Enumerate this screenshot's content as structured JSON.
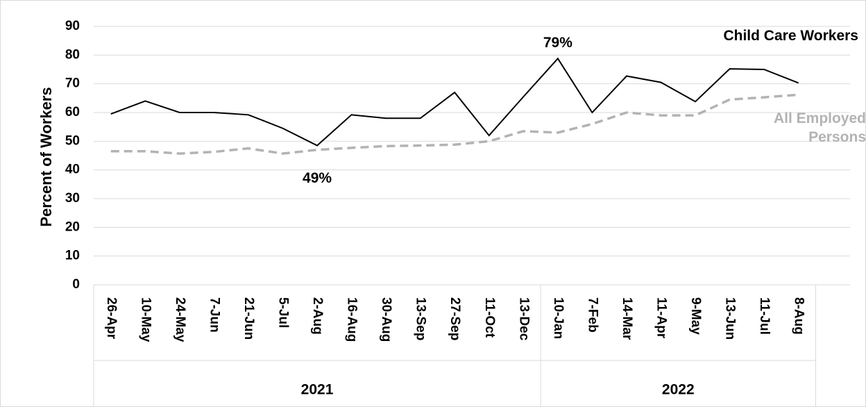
{
  "chart_data": {
    "type": "line",
    "y_label": "Percent of Workers",
    "categories": [
      "26-Apr",
      "10-May",
      "24-May",
      "7-Jun",
      "21-Jun",
      "5-Jul",
      "2-Aug",
      "16-Aug",
      "30-Aug",
      "13-Sep",
      "27-Sep",
      "11-Oct",
      "13-Dec",
      "10-Jan",
      "7-Feb",
      "14-Mar",
      "11-Apr",
      "9-May",
      "13-Jun",
      "11-Jul",
      "8-Aug",
      null
    ],
    "groups": [
      {
        "label": "2021",
        "span": 13
      },
      {
        "label": "2022",
        "span": 8
      }
    ],
    "series": [
      {
        "name": "Child Care Workers",
        "color": "#000000",
        "dash": false,
        "values": [
          59.5,
          64,
          60,
          60,
          59.2,
          54.5,
          48.5,
          59.2,
          58,
          58,
          67,
          52,
          65.5,
          78.8,
          60,
          72.7,
          70.5,
          63.8,
          75.2,
          75,
          70.3,
          null
        ]
      },
      {
        "name": "All Employed Persons",
        "color": "#b3b3b3",
        "dash": true,
        "values": [
          46.5,
          46.5,
          45.7,
          46.3,
          47.5,
          45.7,
          47,
          47.7,
          48.3,
          48.5,
          48.8,
          50,
          53.5,
          53,
          56,
          60,
          59,
          59,
          64.5,
          65.3,
          66.2,
          null
        ]
      }
    ],
    "annotations": [
      {
        "text": "79%",
        "index": 13
      },
      {
        "text": "49%",
        "index": 6
      }
    ],
    "ylim": [
      0,
      90
    ],
    "yticks": [
      0,
      10,
      20,
      30,
      40,
      50,
      60,
      70,
      80,
      90
    ],
    "grid": true
  }
}
